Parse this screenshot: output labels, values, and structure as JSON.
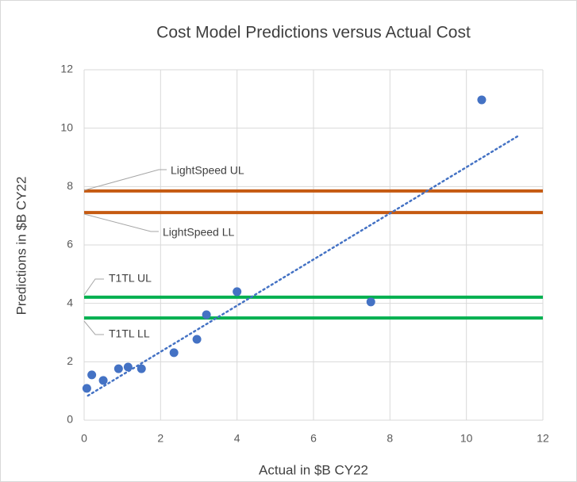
{
  "chart_data": {
    "type": "scatter",
    "title": "Cost Model Predictions versus Actual Cost",
    "xlabel": "Actual in $B CY22",
    "ylabel": "Predictions in $B CY22",
    "x": [
      0.07,
      0.2,
      0.5,
      0.9,
      1.15,
      1.5,
      2.35,
      2.95,
      3.2,
      4.0,
      7.5,
      10.4
    ],
    "values": [
      1.09,
      1.55,
      1.36,
      1.76,
      1.82,
      1.76,
      2.31,
      2.77,
      3.61,
      4.4,
      4.05,
      10.97
    ],
    "color": "#4472c4",
    "trendline": {
      "x": [
        0.1,
        11.4
      ],
      "y": [
        0.84,
        9.77
      ],
      "color": "#4472c4"
    },
    "reference_lines": [
      {
        "label": "LightSpeed UL",
        "value": 7.85,
        "color": "#c55a11"
      },
      {
        "label": "LightSpeed LL",
        "value": 7.11,
        "color": "#c55a11"
      },
      {
        "label": "T1TL UL",
        "value": 4.21,
        "color": "#00b050"
      },
      {
        "label": "T1TL LL",
        "value": 3.5,
        "color": "#00b050"
      }
    ],
    "xlim": [
      0,
      12
    ],
    "xticks": [
      0,
      2,
      4,
      6,
      8,
      10,
      12
    ],
    "ylim": [
      0,
      12
    ],
    "yticks": [
      0,
      2,
      4,
      6,
      8,
      10,
      12
    ],
    "grid": true
  }
}
